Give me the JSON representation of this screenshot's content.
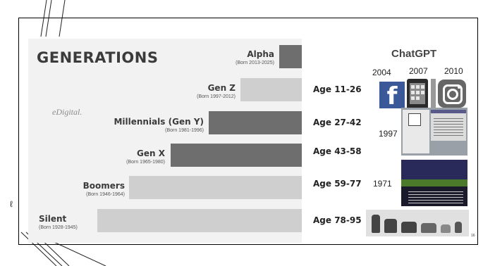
{
  "title": "GENERATIONS",
  "brand": "eDigital.",
  "generations": [
    {
      "name": "Alpha",
      "born": "(Born 2013-2025)",
      "age": ""
    },
    {
      "name": "Gen Z",
      "born": "(Born 1997-2012)",
      "age": "Age 11-26"
    },
    {
      "name": "Millennials (Gen Y)",
      "born": "(Born 1981-1996)",
      "age": "Age 27-42"
    },
    {
      "name": "Gen X",
      "born": "(Born 1965-1980)",
      "age": "Age 43-58"
    },
    {
      "name": "Boomers",
      "born": "(Born 1946-1964)",
      "age": "Age 59-77"
    },
    {
      "name": "Silent",
      "born": "(Born 1928-1945)",
      "age": "Age 78-95"
    }
  ],
  "chatgpt_label": "ChatGPT",
  "years": {
    "y2004": "2004",
    "y2007": "2007",
    "y2010": "2010",
    "y1997": "1997",
    "y1971": "1971"
  },
  "icons": {
    "facebook": "facebook-icon",
    "iphone": "iphone-icon",
    "instagram": "instagram-icon",
    "windows": "windows-screenshot",
    "game": "oregon-trail-screenshot",
    "phones": "telephones-image"
  },
  "facebook_glyph": "f",
  "slide_number": "16",
  "colors": {
    "bar_dark": "#6e6e6e",
    "bar_light": "#cfcfcf",
    "facebook": "#3b5998"
  }
}
